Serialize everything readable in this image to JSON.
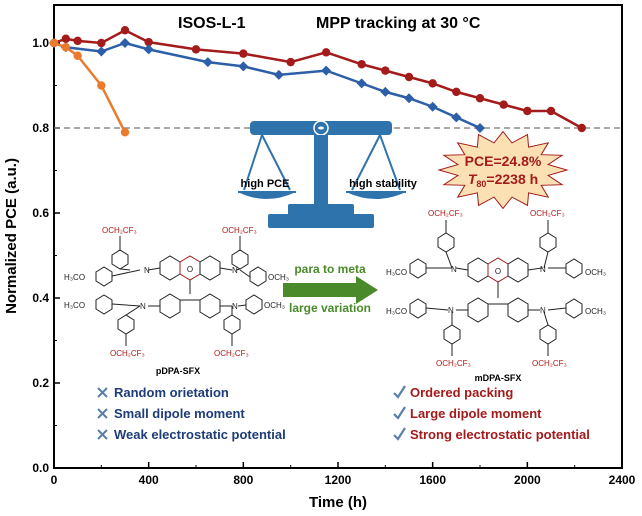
{
  "chart_data": {
    "type": "line",
    "title_left": "ISOS-L-1",
    "title_right": "MPP tracking at 30 °C",
    "xlabel": "Time (h)",
    "ylabel": "Normalized PCE (a.u.)",
    "xlim": [
      0,
      2400
    ],
    "ylim": [
      0.0,
      1.0
    ],
    "xticks": [
      "0",
      "400",
      "800",
      "1200",
      "1600",
      "2000",
      "2400"
    ],
    "yticks": [
      "0.0",
      "0.2",
      "0.4",
      "0.6",
      "0.8",
      "1.0"
    ],
    "reference_line": 0.8,
    "series": [
      {
        "color": "#a31b1b",
        "marker": "circle",
        "x": [
          0,
          50,
          100,
          200,
          300,
          400,
          600,
          800,
          1000,
          1150,
          1300,
          1400,
          1500,
          1600,
          1700,
          1800,
          1900,
          2000,
          2100,
          2230
        ],
        "y": [
          1.0,
          1.01,
          1.005,
          1.0,
          1.03,
          1.002,
          0.985,
          0.975,
          0.955,
          0.978,
          0.95,
          0.935,
          0.92,
          0.905,
          0.885,
          0.87,
          0.855,
          0.84,
          0.84,
          0.8
        ]
      },
      {
        "color": "#2d5fa8",
        "marker": "diamond",
        "x": [
          0,
          50,
          200,
          300,
          400,
          650,
          800,
          950,
          1150,
          1300,
          1400,
          1500,
          1600,
          1700,
          1800
        ],
        "y": [
          1.0,
          0.99,
          0.98,
          1.0,
          0.985,
          0.955,
          0.945,
          0.925,
          0.935,
          0.905,
          0.885,
          0.87,
          0.85,
          0.825,
          0.8
        ]
      },
      {
        "color": "#ea7a2d",
        "marker": "circle",
        "x": [
          0,
          50,
          100,
          200,
          300
        ],
        "y": [
          1.0,
          0.99,
          0.97,
          0.9,
          0.79
        ]
      }
    ],
    "annotations": {
      "scale_left": "high PCE",
      "scale_right": "high stability",
      "badge_line1": "PCE=24.8%",
      "badge_line2": "T",
      "badge_sub": "80",
      "badge_tail": "=2238 h",
      "arrow_top": "para to meta",
      "arrow_bottom": "large variation",
      "mol_left_name": "pDPA-SFX",
      "mol_right_name": "mDPA-SFX",
      "substituent": "OCH₂CF₃",
      "methoxy_left": "H₃CO",
      "methoxy_right": "OCH₃"
    },
    "left_list": [
      "Random orietation",
      "Small dipole moment",
      "Weak electrostatic potential"
    ],
    "right_list": [
      "Ordered packing",
      "Large dipole moment",
      "Strong electrostatic potential"
    ],
    "colors": {
      "red": "#a31b1b",
      "blue": "#2d5fa8",
      "orange": "#ea7a2d",
      "scale": "#2f73ad",
      "badge": "#fbe0b4",
      "arrow": "#4a8a2a",
      "cross": "#5a7fa8"
    }
  }
}
